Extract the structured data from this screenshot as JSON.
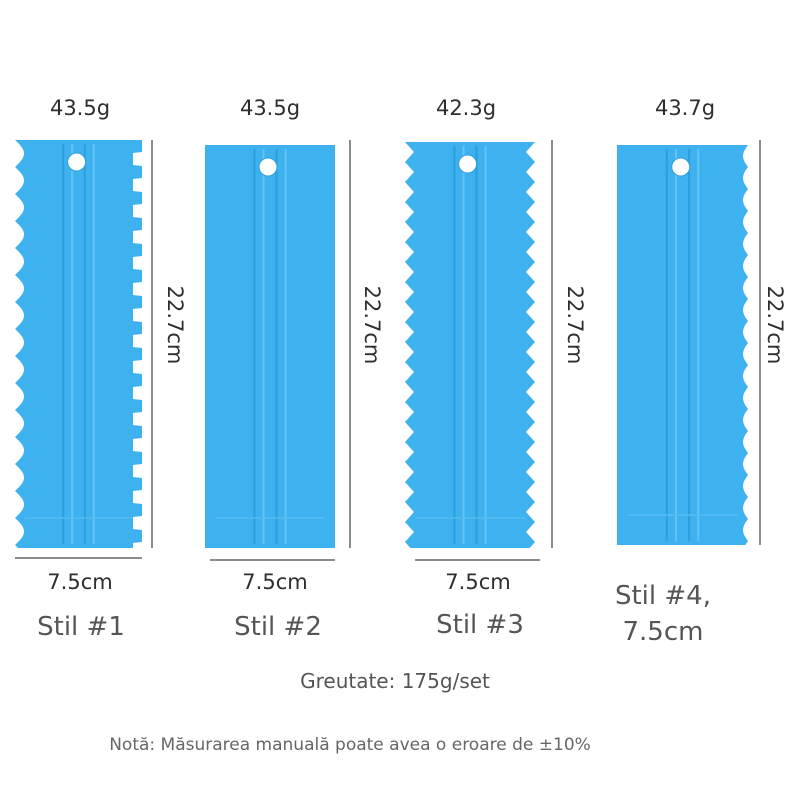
{
  "products": [
    {
      "weight": "43.5g",
      "height": "22.7cm",
      "width": "7.5cm",
      "style": "Stil #1"
    },
    {
      "weight": "43.5g",
      "height": "22.7cm",
      "width": "7.5cm",
      "style": "Stil #2"
    },
    {
      "weight": "42.3g",
      "height": "22.7cm",
      "width": "7.5cm",
      "style": "Stil #3"
    },
    {
      "weight": "43.7g",
      "height": "22.7cm",
      "style": "Stil #4, 7.5cm"
    }
  ],
  "total_weight": "Greutate: 175g/set",
  "note": "Notă: Măsurarea manuală poate avea o eroare de ±10%"
}
